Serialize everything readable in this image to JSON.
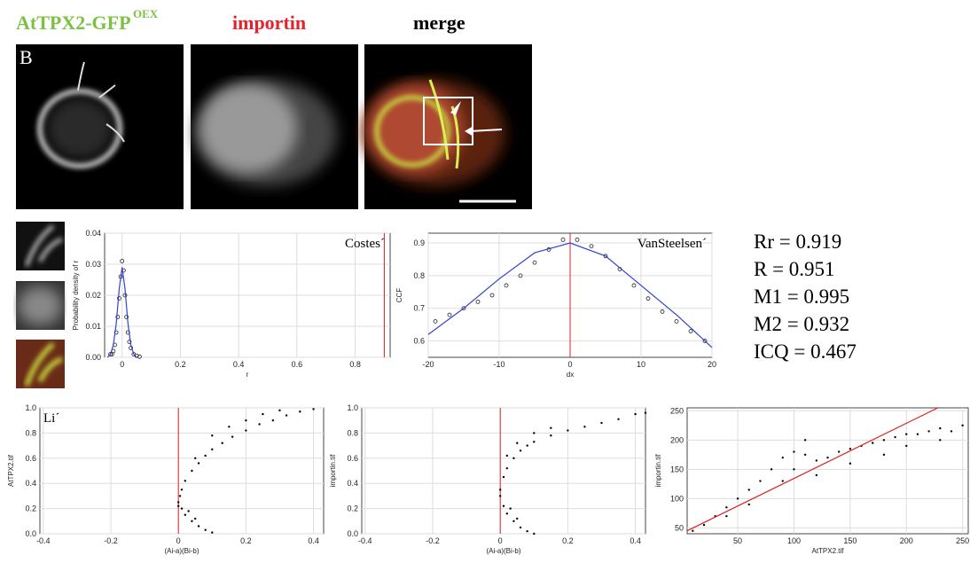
{
  "figure": {
    "channel_1": "AtTPX2-GFP",
    "channel_1_sup": "OEX",
    "channel_2": "importin",
    "channel_3": "merge",
    "panel_label": "B",
    "stats": [
      "Rr = 0.919",
      "R = 0.951",
      "M1 = 0.995",
      "M2 = 0.932",
      "ICQ = 0.467"
    ]
  },
  "chart_data": [
    {
      "type": "scatter",
      "annotation": "Costes´",
      "x_label": "r",
      "y_label": "Probability density of r",
      "xlim": [
        -0.06,
        0.92
      ],
      "xticks": [
        0,
        0.2,
        0.4,
        0.6,
        0.8
      ],
      "ylim": [
        0,
        0.04
      ],
      "yticks": [
        {
          "value": 0,
          "label": "0.00"
        },
        {
          "value": 0.01,
          "label": "0.01"
        },
        {
          "value": 0.02,
          "label": "0.02"
        },
        {
          "value": 0.03,
          "label": "0.03"
        },
        {
          "value": 0.04,
          "label": "0.04"
        }
      ],
      "grid": true,
      "vline": 0.9,
      "vline_color": "#e02020",
      "series": [
        {
          "marker": "circle",
          "color": "#222222",
          "x": [
            -0.04,
            -0.035,
            -0.03,
            -0.025,
            -0.02,
            -0.015,
            -0.01,
            -0.005,
            0,
            0.005,
            0.01,
            0.015,
            0.02,
            0.025,
            0.03,
            0.04,
            0.05,
            0.06
          ],
          "values": [
            0.001,
            0.001,
            0.002,
            0.004,
            0.008,
            0.013,
            0.019,
            0.026,
            0.031,
            0.028,
            0.02,
            0.013,
            0.008,
            0.005,
            0.003,
            0.001,
            0.0005,
            0.0002
          ]
        },
        {
          "marker": "line",
          "color": "#3344cc",
          "x": [
            -0.05,
            -0.04,
            -0.03,
            -0.02,
            -0.01,
            0,
            0.01,
            0.02,
            0.03,
            0.04,
            0.05
          ],
          "values": [
            0,
            0.001,
            0.004,
            0.011,
            0.022,
            0.029,
            0.022,
            0.011,
            0.004,
            0.001,
            0
          ]
        }
      ]
    },
    {
      "type": "scatter",
      "annotation": "VanSteelsen´",
      "x_label": "dx",
      "y_label": "CCF",
      "xlim": [
        -20,
        20
      ],
      "xticks": [
        -20,
        -10,
        0,
        10,
        20
      ],
      "ylim": [
        0.55,
        0.93
      ],
      "yticks": [
        0.6,
        0.7,
        0.8,
        0.9
      ],
      "grid": true,
      "vline": 0,
      "vline_color": "#e02020",
      "series": [
        {
          "marker": "circle",
          "color": "#222222",
          "x": [
            -19,
            -17,
            -15,
            -13,
            -11,
            -9,
            -7,
            -5,
            -3,
            -1,
            1,
            3,
            5,
            7,
            9,
            11,
            13,
            15,
            17,
            19
          ],
          "values": [
            0.66,
            0.68,
            0.7,
            0.72,
            0.74,
            0.77,
            0.8,
            0.84,
            0.88,
            0.91,
            0.91,
            0.89,
            0.86,
            0.82,
            0.77,
            0.73,
            0.69,
            0.66,
            0.63,
            0.6
          ]
        },
        {
          "marker": "line",
          "color": "#3344cc",
          "x": [
            -20,
            -15,
            -10,
            -5,
            0,
            5,
            10,
            15,
            20
          ],
          "values": [
            0.62,
            0.7,
            0.79,
            0.87,
            0.9,
            0.86,
            0.77,
            0.68,
            0.58
          ]
        }
      ]
    },
    {
      "type": "scatter",
      "annotation": "Li´",
      "x_label": "(Ai-a)(Bi-b)",
      "y_label": "AtTPX2.tif",
      "xlim": [
        -0.41,
        0.43
      ],
      "xticks": [
        -0.4,
        -0.2,
        0,
        0.2,
        0.4
      ],
      "ylim": [
        0,
        1
      ],
      "yticks": [
        {
          "value": 0,
          "label": "0.0"
        },
        0.2,
        0.4,
        0.6,
        0.8,
        {
          "value": 1,
          "label": "1.0"
        }
      ],
      "grid": true,
      "vline": 0,
      "vline_color": "#e02020",
      "series": [
        {
          "marker": "dot",
          "color": "#000000",
          "x": [
            0,
            0.005,
            0.01,
            0.02,
            0.04,
            0.06,
            0.08,
            0.1,
            0.13,
            0.16,
            0.2,
            0.24,
            0.28,
            0.32,
            0.36,
            0.4,
            0.1,
            0.15,
            0.05,
            0.2,
            0.25,
            0.3,
            0,
            0.01,
            0.02,
            0.04,
            0.06,
            0.08,
            0.1,
            0.03,
            0.05
          ],
          "values": [
            0.22,
            0.3,
            0.35,
            0.42,
            0.5,
            0.56,
            0.62,
            0.67,
            0.72,
            0.77,
            0.82,
            0.87,
            0.9,
            0.94,
            0.97,
            0.99,
            0.78,
            0.85,
            0.6,
            0.9,
            0.95,
            0.98,
            0.25,
            0.2,
            0.15,
            0.1,
            0.06,
            0.03,
            0.01,
            0.18,
            0.12
          ]
        }
      ]
    },
    {
      "type": "scatter",
      "x_label": "(Ai-a)(Bi-b)",
      "y_label": "importin.tif",
      "xlim": [
        -0.41,
        0.43
      ],
      "xticks": [
        -0.4,
        -0.2,
        0,
        0.2,
        0.4
      ],
      "ylim": [
        0,
        1
      ],
      "yticks": [
        {
          "value": 0,
          "label": "0.0"
        },
        0.2,
        0.4,
        0.6,
        0.8,
        {
          "value": 1,
          "label": "1.0"
        }
      ],
      "grid": true,
      "vline": 0,
      "vline_color": "#e02020",
      "series": [
        {
          "marker": "dot",
          "color": "#000000",
          "x": [
            0,
            0.01,
            0.02,
            0.04,
            0.06,
            0.08,
            0.1,
            0.15,
            0.2,
            0.25,
            0.3,
            0.35,
            0.4,
            0.43,
            0.05,
            0.1,
            0.15,
            0.02,
            0,
            0.01,
            0.02,
            0.04,
            0.06,
            0.08,
            0.1,
            0.03,
            0.05
          ],
          "values": [
            0.35,
            0.45,
            0.52,
            0.6,
            0.66,
            0.7,
            0.73,
            0.78,
            0.82,
            0.85,
            0.88,
            0.91,
            0.95,
            0.96,
            0.72,
            0.8,
            0.84,
            0.62,
            0.3,
            0.22,
            0.16,
            0.1,
            0.05,
            0.02,
            0,
            0.2,
            0.12
          ]
        }
      ]
    },
    {
      "type": "scatter",
      "x_label": "AtTPX2.tif",
      "y_label": "importin.tif",
      "xlim": [
        5,
        255
      ],
      "xticks": [
        50,
        100,
        150,
        200,
        250
      ],
      "ylim": [
        40,
        255
      ],
      "yticks": [
        50,
        100,
        150,
        200,
        250
      ],
      "grid": true,
      "series": [
        {
          "marker": "dot",
          "color": "#000000",
          "x": [
            10,
            20,
            30,
            40,
            50,
            60,
            70,
            80,
            90,
            100,
            110,
            120,
            130,
            140,
            150,
            160,
            170,
            180,
            190,
            200,
            210,
            220,
            230,
            240,
            250,
            90,
            100,
            110,
            120,
            150,
            60,
            40,
            180,
            200,
            230
          ],
          "values": [
            45,
            55,
            70,
            85,
            100,
            115,
            130,
            150,
            170,
            180,
            175,
            165,
            170,
            180,
            185,
            190,
            195,
            200,
            205,
            210,
            210,
            215,
            220,
            215,
            225,
            130,
            150,
            200,
            140,
            160,
            90,
            70,
            175,
            190,
            200
          ]
        },
        {
          "marker": "line",
          "color": "#e02020",
          "x": [
            5,
            228
          ],
          "values": [
            45,
            255
          ]
        }
      ]
    }
  ]
}
